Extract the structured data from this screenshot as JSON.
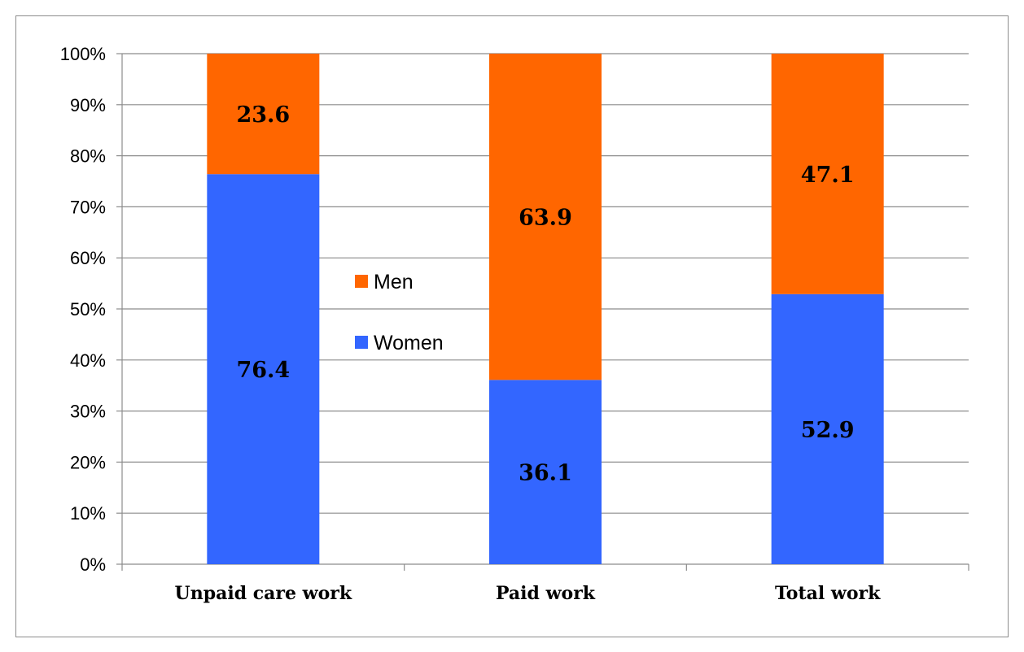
{
  "chart_data": {
    "type": "bar",
    "stacked": true,
    "normalized_percent": true,
    "categories": [
      "Unpaid care work",
      "Paid work",
      "Total work"
    ],
    "series": [
      {
        "name": "Women",
        "values": [
          76.4,
          36.1,
          52.9
        ],
        "color": "#3366ff"
      },
      {
        "name": "Men",
        "values": [
          23.6,
          63.9,
          47.1
        ],
        "color": "#ff6600"
      }
    ],
    "title": "",
    "xlabel": "",
    "ylabel": "",
    "ylim": [
      0,
      100
    ],
    "y_ticks": [
      "0%",
      "10%",
      "20%",
      "30%",
      "40%",
      "50%",
      "60%",
      "70%",
      "80%",
      "90%",
      "100%"
    ],
    "grid": true,
    "legend": {
      "placement": "center-left, between first and second bars",
      "order": [
        "Men",
        "Women"
      ]
    }
  }
}
